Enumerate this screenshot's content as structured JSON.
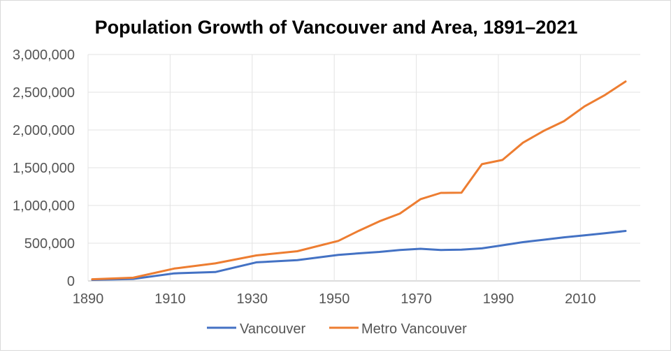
{
  "chart_data": {
    "type": "line",
    "title": "Population Growth of Vancouver and Area, 1891–2021",
    "xlabel": "",
    "ylabel": "",
    "x": [
      1891,
      1901,
      1911,
      1921,
      1931,
      1941,
      1951,
      1956,
      1961,
      1966,
      1971,
      1976,
      1981,
      1986,
      1991,
      1996,
      2001,
      2006,
      2011,
      2016,
      2021
    ],
    "series": [
      {
        "name": "Vancouver",
        "color": "#4472C4",
        "values": [
          13709,
          27010,
          100401,
          117217,
          246593,
          275353,
          344833,
          365844,
          384522,
          410375,
          426256,
          410188,
          414281,
          431147,
          471844,
          514008,
          545671,
          578041,
          603502,
          631486,
          662248
        ]
      },
      {
        "name": "Metro Vancouver",
        "color": "#ED7D31",
        "values": [
          21887,
          42926,
          164020,
          232597,
          338242,
          393898,
          530728,
          665017,
          790165,
          892286,
          1082352,
          1166348,
          1169831,
          1547026,
          1602502,
          1831665,
          1986965,
          2116581,
          2313328,
          2463431,
          2642825
        ]
      }
    ],
    "xlim": [
      1890,
      2030
    ],
    "ylim": [
      0,
      3000000
    ],
    "xticks": [
      "1890",
      "1910",
      "1930",
      "1950",
      "1970",
      "1990",
      "2010"
    ],
    "yticks": [
      "0",
      "500,000",
      "1,000,000",
      "1,500,000",
      "2,000,000",
      "2,500,000",
      "3,000,000"
    ],
    "grid": true,
    "legend": "bottom"
  }
}
